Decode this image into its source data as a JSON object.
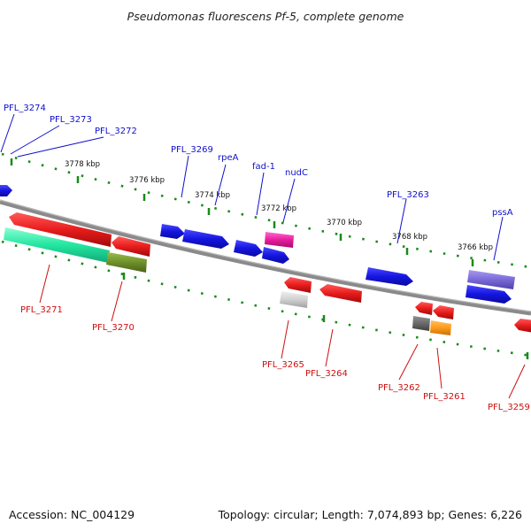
{
  "title": "Pseudomonas fluorescens Pf-5, complete genome",
  "footer": {
    "accession": "Accession: NC_004129",
    "summary": "Topology: circular; Length: 7,074,893 bp; Genes: 6,226"
  },
  "scale_labels": [
    "3778 kbp",
    "3776 kbp",
    "3774 kbp",
    "3772 kbp",
    "3770 kbp",
    "3768 kbp",
    "3766 kbp"
  ],
  "genes": [
    {
      "id": "PFL_3274",
      "strand": "forward"
    },
    {
      "id": "PFL_3273",
      "strand": "forward"
    },
    {
      "id": "PFL_3272",
      "strand": "forward"
    },
    {
      "id": "PFL_3269",
      "strand": "forward"
    },
    {
      "id": "rpeA",
      "strand": "forward"
    },
    {
      "id": "fad-1",
      "strand": "forward"
    },
    {
      "id": "nudC",
      "strand": "forward"
    },
    {
      "id": "PFL_3263",
      "strand": "forward"
    },
    {
      "id": "pssA",
      "strand": "forward"
    },
    {
      "id": "PFL_3271",
      "strand": "reverse"
    },
    {
      "id": "PFL_3270",
      "strand": "reverse"
    },
    {
      "id": "PFL_3265",
      "strand": "reverse"
    },
    {
      "id": "PFL_3264",
      "strand": "reverse"
    },
    {
      "id": "PFL_3262",
      "strand": "reverse"
    },
    {
      "id": "PFL_3261",
      "strand": "reverse"
    },
    {
      "id": "PFL_3259",
      "strand": "reverse"
    }
  ],
  "colors": {
    "forward_gene": "#1a1adb",
    "reverse_gene": "#e81c1c",
    "backbone": "#8a8a8a",
    "tick": "#1a8a1a",
    "teal_gene": "#22e6a0",
    "olive_gene": "#6e8f2a",
    "magenta_gene": "#e81c9c",
    "violet_gene": "#7a6ad8",
    "orange_gene": "#ff9a1a",
    "gray_gene": "#d8d8d8",
    "dark_gene": "#6a6a6a"
  }
}
